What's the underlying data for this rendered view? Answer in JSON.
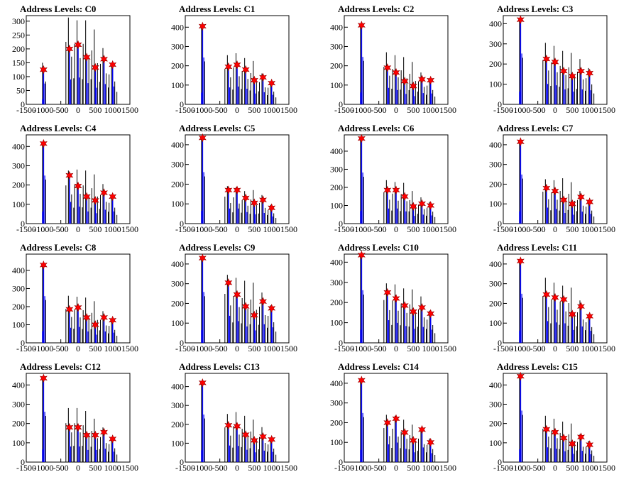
{
  "chart_data": {
    "type": "bar",
    "x_ticks": [
      -1500,
      -1000,
      -500,
      0,
      500,
      1000,
      1500
    ],
    "xlim": [
      -1500,
      1500
    ],
    "marker": "red star",
    "panels": [
      {
        "title": "Address Levels: C0",
        "ylim": [
          0,
          320
        ],
        "yticks": [
          0,
          50,
          100,
          150,
          200,
          250,
          300
        ],
        "peaks": [
          {
            "x": -1000,
            "v": 125
          },
          {
            "x": -250,
            "v": 200
          },
          {
            "x": 0,
            "v": 215
          },
          {
            "x": 250,
            "v": 170
          },
          {
            "x": 500,
            "v": 133
          },
          {
            "x": 750,
            "v": 163
          },
          {
            "x": 1000,
            "v": 143
          }
        ],
        "tall": [
          150,
          313,
          303,
          303,
          270,
          203,
          150
        ]
      },
      {
        "title": "Address Levels: C1",
        "ylim": [
          0,
          460
        ],
        "yticks": [
          0,
          100,
          200,
          300,
          400
        ],
        "peaks": [
          {
            "x": -1000,
            "v": 405
          },
          {
            "x": -250,
            "v": 195
          },
          {
            "x": 0,
            "v": 205
          },
          {
            "x": 250,
            "v": 180
          },
          {
            "x": 500,
            "v": 125
          },
          {
            "x": 750,
            "v": 140
          },
          {
            "x": 1000,
            "v": 110
          }
        ],
        "tall": [
          405,
          255,
          265,
          240,
          225,
          160,
          120
        ]
      },
      {
        "title": "Address Levels: C2",
        "ylim": [
          0,
          460
        ],
        "yticks": [
          0,
          100,
          200,
          300,
          400
        ],
        "peaks": [
          {
            "x": -1000,
            "v": 410
          },
          {
            "x": -250,
            "v": 190
          },
          {
            "x": 0,
            "v": 165
          },
          {
            "x": 250,
            "v": 120
          },
          {
            "x": 500,
            "v": 95
          },
          {
            "x": 750,
            "v": 130
          },
          {
            "x": 1000,
            "v": 125
          }
        ],
        "tall": [
          410,
          270,
          255,
          245,
          220,
          165,
          135
        ]
      },
      {
        "title": "Address Levels: C3",
        "ylim": [
          0,
          440
        ],
        "yticks": [
          0,
          100,
          200,
          300,
          400
        ],
        "peaks": [
          {
            "x": -1000,
            "v": 420
          },
          {
            "x": -250,
            "v": 225
          },
          {
            "x": 0,
            "v": 210
          },
          {
            "x": 250,
            "v": 165
          },
          {
            "x": 500,
            "v": 140
          },
          {
            "x": 750,
            "v": 165
          },
          {
            "x": 1000,
            "v": 155
          }
        ],
        "tall": [
          420,
          305,
          290,
          265,
          255,
          225,
          180
        ]
      },
      {
        "title": "Address Levels: C4",
        "ylim": [
          0,
          460
        ],
        "yticks": [
          0,
          100,
          200,
          300,
          400
        ],
        "peaks": [
          {
            "x": -1000,
            "v": 415
          },
          {
            "x": -250,
            "v": 250
          },
          {
            "x": 0,
            "v": 195
          },
          {
            "x": 250,
            "v": 140
          },
          {
            "x": 500,
            "v": 120
          },
          {
            "x": 750,
            "v": 160
          },
          {
            "x": 1000,
            "v": 140
          }
        ],
        "tall": [
          415,
          275,
          280,
          275,
          255,
          205,
          150
        ]
      },
      {
        "title": "Address Levels: C5",
        "ylim": [
          0,
          450
        ],
        "yticks": [
          0,
          100,
          200,
          300,
          400
        ],
        "peaks": [
          {
            "x": -1000,
            "v": 435
          },
          {
            "x": -250,
            "v": 170
          },
          {
            "x": 0,
            "v": 170
          },
          {
            "x": 250,
            "v": 130
          },
          {
            "x": 500,
            "v": 105
          },
          {
            "x": 750,
            "v": 120
          },
          {
            "x": 1000,
            "v": 80
          }
        ],
        "tall": [
          435,
          190,
          185,
          165,
          170,
          145,
          95
        ]
      },
      {
        "title": "Address Levels: C6",
        "ylim": [
          0,
          490
        ],
        "yticks": [
          0,
          100,
          200,
          300,
          400
        ],
        "peaks": [
          {
            "x": -1000,
            "v": 470
          },
          {
            "x": -250,
            "v": 185
          },
          {
            "x": 0,
            "v": 185
          },
          {
            "x": 250,
            "v": 150
          },
          {
            "x": 500,
            "v": 95
          },
          {
            "x": 750,
            "v": 110
          },
          {
            "x": 1000,
            "v": 100
          }
        ],
        "tall": [
          470,
          240,
          230,
          225,
          180,
          145,
          120
        ]
      },
      {
        "title": "Address Levels: C7",
        "ylim": [
          0,
          450
        ],
        "yticks": [
          0,
          100,
          200,
          300,
          400
        ],
        "peaks": [
          {
            "x": -1000,
            "v": 415
          },
          {
            "x": -250,
            "v": 180
          },
          {
            "x": 0,
            "v": 165
          },
          {
            "x": 250,
            "v": 120
          },
          {
            "x": 500,
            "v": 100
          },
          {
            "x": 750,
            "v": 135
          },
          {
            "x": 1000,
            "v": 110
          }
        ],
        "tall": [
          415,
          225,
          220,
          230,
          210,
          165,
          120
        ]
      },
      {
        "title": "Address Levels: C8",
        "ylim": [
          0,
          490
        ],
        "yticks": [
          0,
          100,
          200,
          300,
          400
        ],
        "peaks": [
          {
            "x": -1000,
            "v": 430
          },
          {
            "x": -250,
            "v": 185
          },
          {
            "x": 0,
            "v": 195
          },
          {
            "x": 250,
            "v": 140
          },
          {
            "x": 500,
            "v": 100
          },
          {
            "x": 750,
            "v": 140
          },
          {
            "x": 1000,
            "v": 125
          }
        ],
        "tall": [
          430,
          260,
          255,
          250,
          230,
          175,
          130
        ]
      },
      {
        "title": "Address Levels: C9",
        "ylim": [
          0,
          450
        ],
        "yticks": [
          0,
          100,
          200,
          300,
          400
        ],
        "peaks": [
          {
            "x": -1000,
            "v": 430
          },
          {
            "x": -250,
            "v": 305
          },
          {
            "x": 0,
            "v": 245
          },
          {
            "x": 250,
            "v": 185
          },
          {
            "x": 500,
            "v": 140
          },
          {
            "x": 750,
            "v": 210
          },
          {
            "x": 1000,
            "v": 175
          }
        ],
        "tall": [
          430,
          345,
          330,
          315,
          305,
          255,
          190
        ]
      },
      {
        "title": "Address Levels: C10",
        "ylim": [
          0,
          440
        ],
        "yticks": [
          0,
          100,
          200,
          300,
          400
        ],
        "peaks": [
          {
            "x": -1000,
            "v": 435
          },
          {
            "x": -250,
            "v": 250
          },
          {
            "x": 0,
            "v": 220
          },
          {
            "x": 250,
            "v": 185
          },
          {
            "x": 500,
            "v": 155
          },
          {
            "x": 750,
            "v": 175
          },
          {
            "x": 1000,
            "v": 145
          }
        ],
        "tall": [
          435,
          295,
          290,
          270,
          265,
          230,
          160
        ]
      },
      {
        "title": "Address Levels: C11",
        "ylim": [
          0,
          450
        ],
        "yticks": [
          0,
          100,
          200,
          300,
          400
        ],
        "peaks": [
          {
            "x": -1000,
            "v": 415
          },
          {
            "x": -250,
            "v": 245
          },
          {
            "x": 0,
            "v": 230
          },
          {
            "x": 250,
            "v": 220
          },
          {
            "x": 500,
            "v": 145
          },
          {
            "x": 750,
            "v": 185
          },
          {
            "x": 1000,
            "v": 135
          }
        ],
        "tall": [
          415,
          330,
          305,
          290,
          280,
          215,
          145
        ]
      },
      {
        "title": "Address Levels: C12",
        "ylim": [
          0,
          460
        ],
        "yticks": [
          0,
          100,
          200,
          300,
          400
        ],
        "peaks": [
          {
            "x": -1000,
            "v": 435
          },
          {
            "x": -250,
            "v": 180
          },
          {
            "x": 0,
            "v": 180
          },
          {
            "x": 250,
            "v": 140
          },
          {
            "x": 500,
            "v": 140
          },
          {
            "x": 750,
            "v": 155
          },
          {
            "x": 1000,
            "v": 120
          }
        ],
        "tall": [
          435,
          280,
          280,
          265,
          225,
          180,
          130
        ]
      },
      {
        "title": "Address Levels: C13",
        "ylim": [
          0,
          470
        ],
        "yticks": [
          0,
          100,
          200,
          300,
          400
        ],
        "peaks": [
          {
            "x": -1000,
            "v": 420
          },
          {
            "x": -250,
            "v": 195
          },
          {
            "x": 0,
            "v": 190
          },
          {
            "x": 250,
            "v": 145
          },
          {
            "x": 500,
            "v": 115
          },
          {
            "x": 750,
            "v": 135
          },
          {
            "x": 1000,
            "v": 120
          }
        ],
        "tall": [
          420,
          255,
          265,
          245,
          225,
          185,
          130
        ]
      },
      {
        "title": "Address Levels: C14",
        "ylim": [
          0,
          450
        ],
        "yticks": [
          0,
          100,
          200,
          300,
          400
        ],
        "peaks": [
          {
            "x": -1000,
            "v": 415
          },
          {
            "x": -250,
            "v": 200
          },
          {
            "x": 0,
            "v": 220
          },
          {
            "x": 250,
            "v": 150
          },
          {
            "x": 500,
            "v": 110
          },
          {
            "x": 750,
            "v": 165
          },
          {
            "x": 1000,
            "v": 100
          }
        ],
        "tall": [
          415,
          240,
          235,
          215,
          190,
          165,
          120
        ]
      },
      {
        "title": "Address Levels: C15",
        "ylim": [
          0,
          460
        ],
        "yticks": [
          0,
          100,
          200,
          300,
          400
        ],
        "peaks": [
          {
            "x": -1000,
            "v": 445
          },
          {
            "x": -250,
            "v": 170
          },
          {
            "x": 0,
            "v": 155
          },
          {
            "x": 250,
            "v": 125
          },
          {
            "x": 500,
            "v": 95
          },
          {
            "x": 750,
            "v": 130
          },
          {
            "x": 1000,
            "v": 90
          }
        ],
        "tall": [
          445,
          240,
          225,
          210,
          200,
          145,
          110
        ]
      }
    ]
  }
}
